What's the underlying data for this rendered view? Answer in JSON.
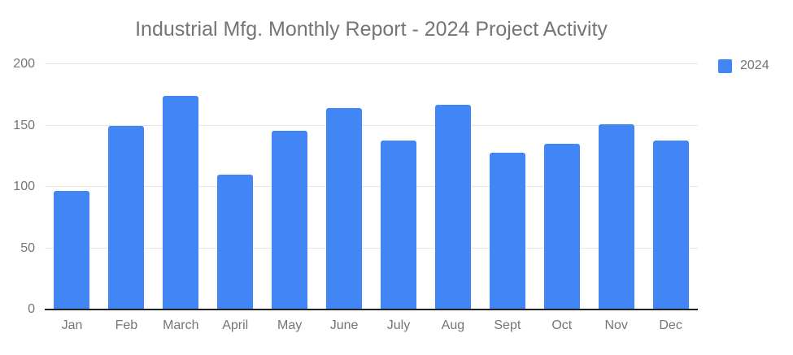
{
  "chart_data": {
    "type": "bar",
    "title": "Industrial Mfg. Monthly Report - 2024 Project Activity",
    "categories": [
      "Jan",
      "Feb",
      "March",
      "April",
      "May",
      "June",
      "July",
      "Aug",
      "Sept",
      "Oct",
      "Nov",
      "Dec"
    ],
    "series": [
      {
        "name": "2024",
        "values": [
          97,
          150,
          174,
          110,
          146,
          164,
          138,
          167,
          128,
          135,
          151,
          138
        ]
      }
    ],
    "xlabel": "",
    "ylabel": "",
    "ylim": [
      0,
      200
    ],
    "yticks": [
      0,
      50,
      100,
      150,
      200
    ],
    "grid": true,
    "legend_position": "top-right",
    "colors": {
      "bar": "#4285F4",
      "gridline": "#e6e6e6",
      "axis_line": "#212121",
      "text": "#757575",
      "background": "#ffffff"
    }
  }
}
